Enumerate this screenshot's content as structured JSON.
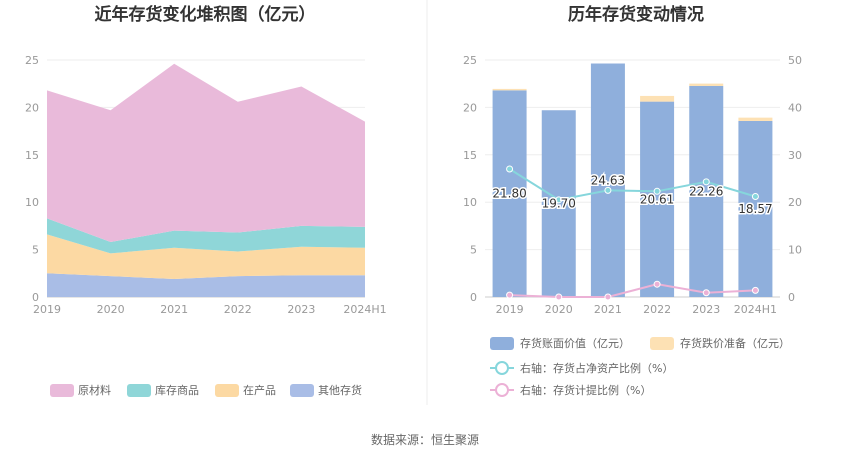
{
  "source_text": "数据来源：恒生聚源",
  "chart_data": [
    {
      "type": "area",
      "stacked": true,
      "title": "近年存货变化堆积图（亿元）",
      "categories": [
        "2019",
        "2020",
        "2021",
        "2022",
        "2023",
        "2024H1"
      ],
      "y_ticks": [
        "0",
        "5",
        "10",
        "15",
        "20",
        "25"
      ],
      "ylim": [
        0,
        25
      ],
      "grid": true,
      "legend_position": "bottom",
      "series": [
        {
          "name": "原材料",
          "color": "#e9bada",
          "values": [
            13.5,
            13.9,
            17.6,
            13.8,
            14.7,
            11.1
          ]
        },
        {
          "name": "库存商品",
          "color": "#8fd6d8",
          "values": [
            1.7,
            1.2,
            1.8,
            2.0,
            2.2,
            2.2
          ]
        },
        {
          "name": "在产品",
          "color": "#fcd9a3",
          "values": [
            4.1,
            2.4,
            3.3,
            2.6,
            3.0,
            2.9
          ]
        },
        {
          "name": "其他存货",
          "color": "#a9bde6",
          "values": [
            2.5,
            2.2,
            1.9,
            2.2,
            2.3,
            2.3
          ]
        }
      ],
      "stack_order_bottom_to_top": [
        "其他存货",
        "在产品",
        "库存商品",
        "原材料"
      ]
    },
    {
      "type": "bar",
      "title": "历年存货变动情况",
      "categories": [
        "2019",
        "2020",
        "2021",
        "2022",
        "2023",
        "2024H1"
      ],
      "left_y_ticks": [
        "0",
        "5",
        "10",
        "15",
        "20",
        "25"
      ],
      "right_y_ticks": [
        "0",
        "10",
        "20",
        "30",
        "40",
        "50"
      ],
      "left_ylim": [
        0,
        25
      ],
      "right_ylim": [
        0,
        50
      ],
      "legend_position": "bottom",
      "bars": {
        "name": "存货账面价值（亿元）",
        "color": "#8fafdc",
        "values": [
          21.8,
          19.7,
          24.63,
          20.61,
          22.26,
          18.57
        ],
        "labels": [
          "21.80",
          "19.70",
          "24.63",
          "20.61",
          "22.26",
          "18.57"
        ]
      },
      "stacked_bars": {
        "name": "存货跌价准备（亿元）",
        "color": "#fde1b4",
        "values": [
          0.15,
          0.0,
          0.0,
          0.6,
          0.25,
          0.35
        ]
      },
      "lines": [
        {
          "name": "右轴：存货占净资产比例（%）",
          "color": "#86d6dc",
          "axis": "right",
          "values": [
            27.0,
            20.5,
            22.5,
            22.3,
            24.3,
            21.2
          ]
        },
        {
          "name": "右轴：存货计提比例（%）",
          "color": "#ecb1d6",
          "axis": "right",
          "values": [
            0.4,
            0.0,
            0.0,
            2.7,
            0.9,
            1.4
          ]
        }
      ]
    }
  ]
}
